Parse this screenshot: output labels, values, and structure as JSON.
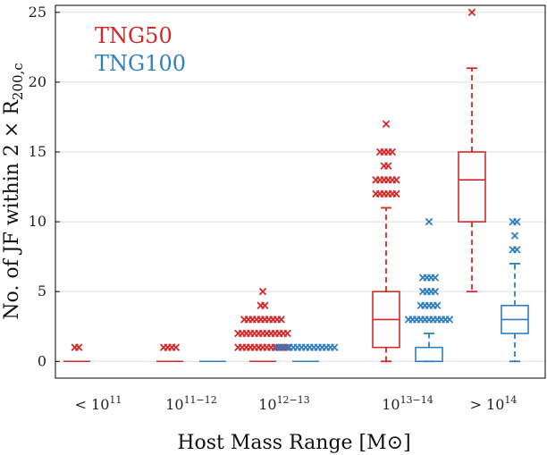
{
  "chart_data": {
    "type": "box",
    "xlabel": "Host Mass Range [M⊙]",
    "ylabel": "No. of JF within 2 × R",
    "ylabel_sub": "200,c",
    "ylim": [
      -1.2,
      25.5
    ],
    "yticks": [
      0,
      5,
      10,
      15,
      20,
      25
    ],
    "grid": true,
    "categories": [
      {
        "base": "< 10",
        "sup": "11"
      },
      {
        "base": "10",
        "sup": "11−12"
      },
      {
        "base": "10",
        "sup": "12−13"
      },
      {
        "base": "10",
        "sup": "13−14"
      },
      {
        "base": "> 10",
        "sup": "14"
      }
    ],
    "legend": {
      "position": "top-left"
    },
    "series": [
      {
        "name": "TNG50",
        "color": "#d62728",
        "boxes": [
          {
            "category": 0,
            "q1": 0,
            "median": 0,
            "q3": 0,
            "whisker_low": 0,
            "whisker_high": 0,
            "outliers": [
              1,
              1
            ]
          },
          {
            "category": 1,
            "q1": 0,
            "median": 0,
            "q3": 0,
            "whisker_low": 0,
            "whisker_high": 0,
            "outliers": [
              1,
              1,
              1,
              1
            ]
          },
          {
            "category": 2,
            "q1": 0,
            "median": 0,
            "q3": 0,
            "whisker_low": 0,
            "whisker_high": 0,
            "outliers": [
              1,
              1,
              1,
              1,
              1,
              1,
              1,
              1,
              1,
              1,
              1,
              1,
              1,
              2,
              2,
              2,
              2,
              2,
              2,
              2,
              2,
              2,
              2,
              2,
              2,
              2,
              3,
              3,
              3,
              3,
              3,
              3,
              3,
              3,
              3,
              3,
              4,
              4,
              5
            ]
          },
          {
            "category": 3,
            "q1": 1,
            "median": 3,
            "q3": 5,
            "whisker_low": 0,
            "whisker_high": 11,
            "outliers": [
              12,
              12,
              12,
              12,
              12,
              12,
              13,
              13,
              13,
              13,
              13,
              13,
              14,
              14,
              15,
              15,
              15,
              15,
              17
            ]
          },
          {
            "category": 4,
            "q1": 10,
            "median": 13,
            "q3": 15,
            "whisker_low": 5,
            "whisker_high": 21,
            "outliers": [
              25
            ]
          }
        ]
      },
      {
        "name": "TNG100",
        "color": "#2f7fc1",
        "boxes": [
          {
            "category": 1,
            "q1": 0,
            "median": 0,
            "q3": 0,
            "whisker_low": 0,
            "whisker_high": 0,
            "outliers": []
          },
          {
            "category": 2,
            "q1": 0,
            "median": 0,
            "q3": 0,
            "whisker_low": 0,
            "whisker_high": 0,
            "outliers": [
              1,
              1,
              1,
              1,
              1,
              1,
              1,
              1,
              1,
              1,
              1,
              1,
              1,
              1,
              1
            ]
          },
          {
            "category": 3,
            "q1": 0,
            "median": 0,
            "q3": 1,
            "whisker_low": 0,
            "whisker_high": 2,
            "outliers": [
              3,
              3,
              3,
              3,
              3,
              3,
              3,
              3,
              3,
              3,
              3,
              4,
              4,
              4,
              4,
              4,
              5,
              5,
              5,
              5,
              6,
              6,
              6,
              6,
              10
            ]
          },
          {
            "category": 4,
            "q1": 2,
            "median": 3,
            "q3": 4,
            "whisker_low": 0,
            "whisker_high": 7,
            "outliers": [
              8,
              8,
              9,
              10,
              10
            ]
          }
        ]
      }
    ]
  }
}
